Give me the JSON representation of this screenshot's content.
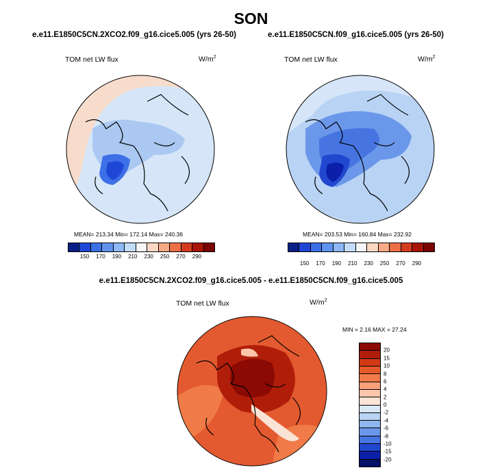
{
  "season": "SON",
  "panels": [
    {
      "title": "e.e11.E1850C5CN.2XCO2.f09_g16.cice5.005 (yrs 26-50)",
      "var_label": "TOM net LW flux",
      "unit": "W/m",
      "unit_exp": "2",
      "stats": "MEAN= 213.34  Min= 172.14  Max= 240.36",
      "fill": "#d6e6f8",
      "colorbar": {
        "ticks": [
          "150",
          "170",
          "190",
          "210",
          "230",
          "250",
          "270",
          "290"
        ],
        "colors": [
          "#0a1f86",
          "#1f47d6",
          "#3d6fe6",
          "#5f93ee",
          "#8db8f5",
          "#c3dcf9",
          "#f6f6f6",
          "#fbd8c2",
          "#f7aa85",
          "#ec6f45",
          "#d43b1e",
          "#a91409",
          "#7a0404"
        ]
      }
    },
    {
      "title": "e.e11.E1850C5CN.f09_g16.cice5.005 (yrs 26-50)",
      "var_label": "TOM net LW flux",
      "unit": "W/m",
      "unit_exp": "2",
      "stats": "MEAN= 203.53  Min= 160.84  Max= 232.92",
      "fill": "#b8d3f4",
      "colorbar": {
        "ticks": [
          "150",
          "170",
          "190",
          "210",
          "230",
          "250",
          "270",
          "290"
        ],
        "colors": [
          "#0a1f86",
          "#1f47d6",
          "#3d6fe6",
          "#5f93ee",
          "#8db8f5",
          "#c3dcf9",
          "#f6f6f6",
          "#fbd8c2",
          "#f7aa85",
          "#ec6f45",
          "#d43b1e",
          "#a91409",
          "#7a0404"
        ]
      }
    }
  ],
  "diff": {
    "title": "e.e11.E1850C5CN.2XCO2.f09_g16.cice5.005 - e.e11.E1850C5CN.f09_g16.cice5.005",
    "var_label": "TOM net LW flux",
    "unit": "W/m",
    "unit_exp": "2",
    "stats": "MIN =   2.16 MAX =  27.24",
    "fill": "#e45a30",
    "colorbar": {
      "ticks": [
        "20",
        "15",
        "10",
        "8",
        "6",
        "4",
        "2",
        "0",
        "-2",
        "-4",
        "-6",
        "-8",
        "-10",
        "-15",
        "-20"
      ],
      "colors": [
        "#8b0a04",
        "#b01e0a",
        "#d23a16",
        "#e55a2a",
        "#f07b48",
        "#f7a07a",
        "#fcc6ab",
        "#fbe3d6",
        "#dbe8f8",
        "#b8d3f4",
        "#8fb6ef",
        "#6b97ea",
        "#4675e2",
        "#2147cf",
        "#0b1fa8",
        "#061168"
      ]
    }
  }
}
